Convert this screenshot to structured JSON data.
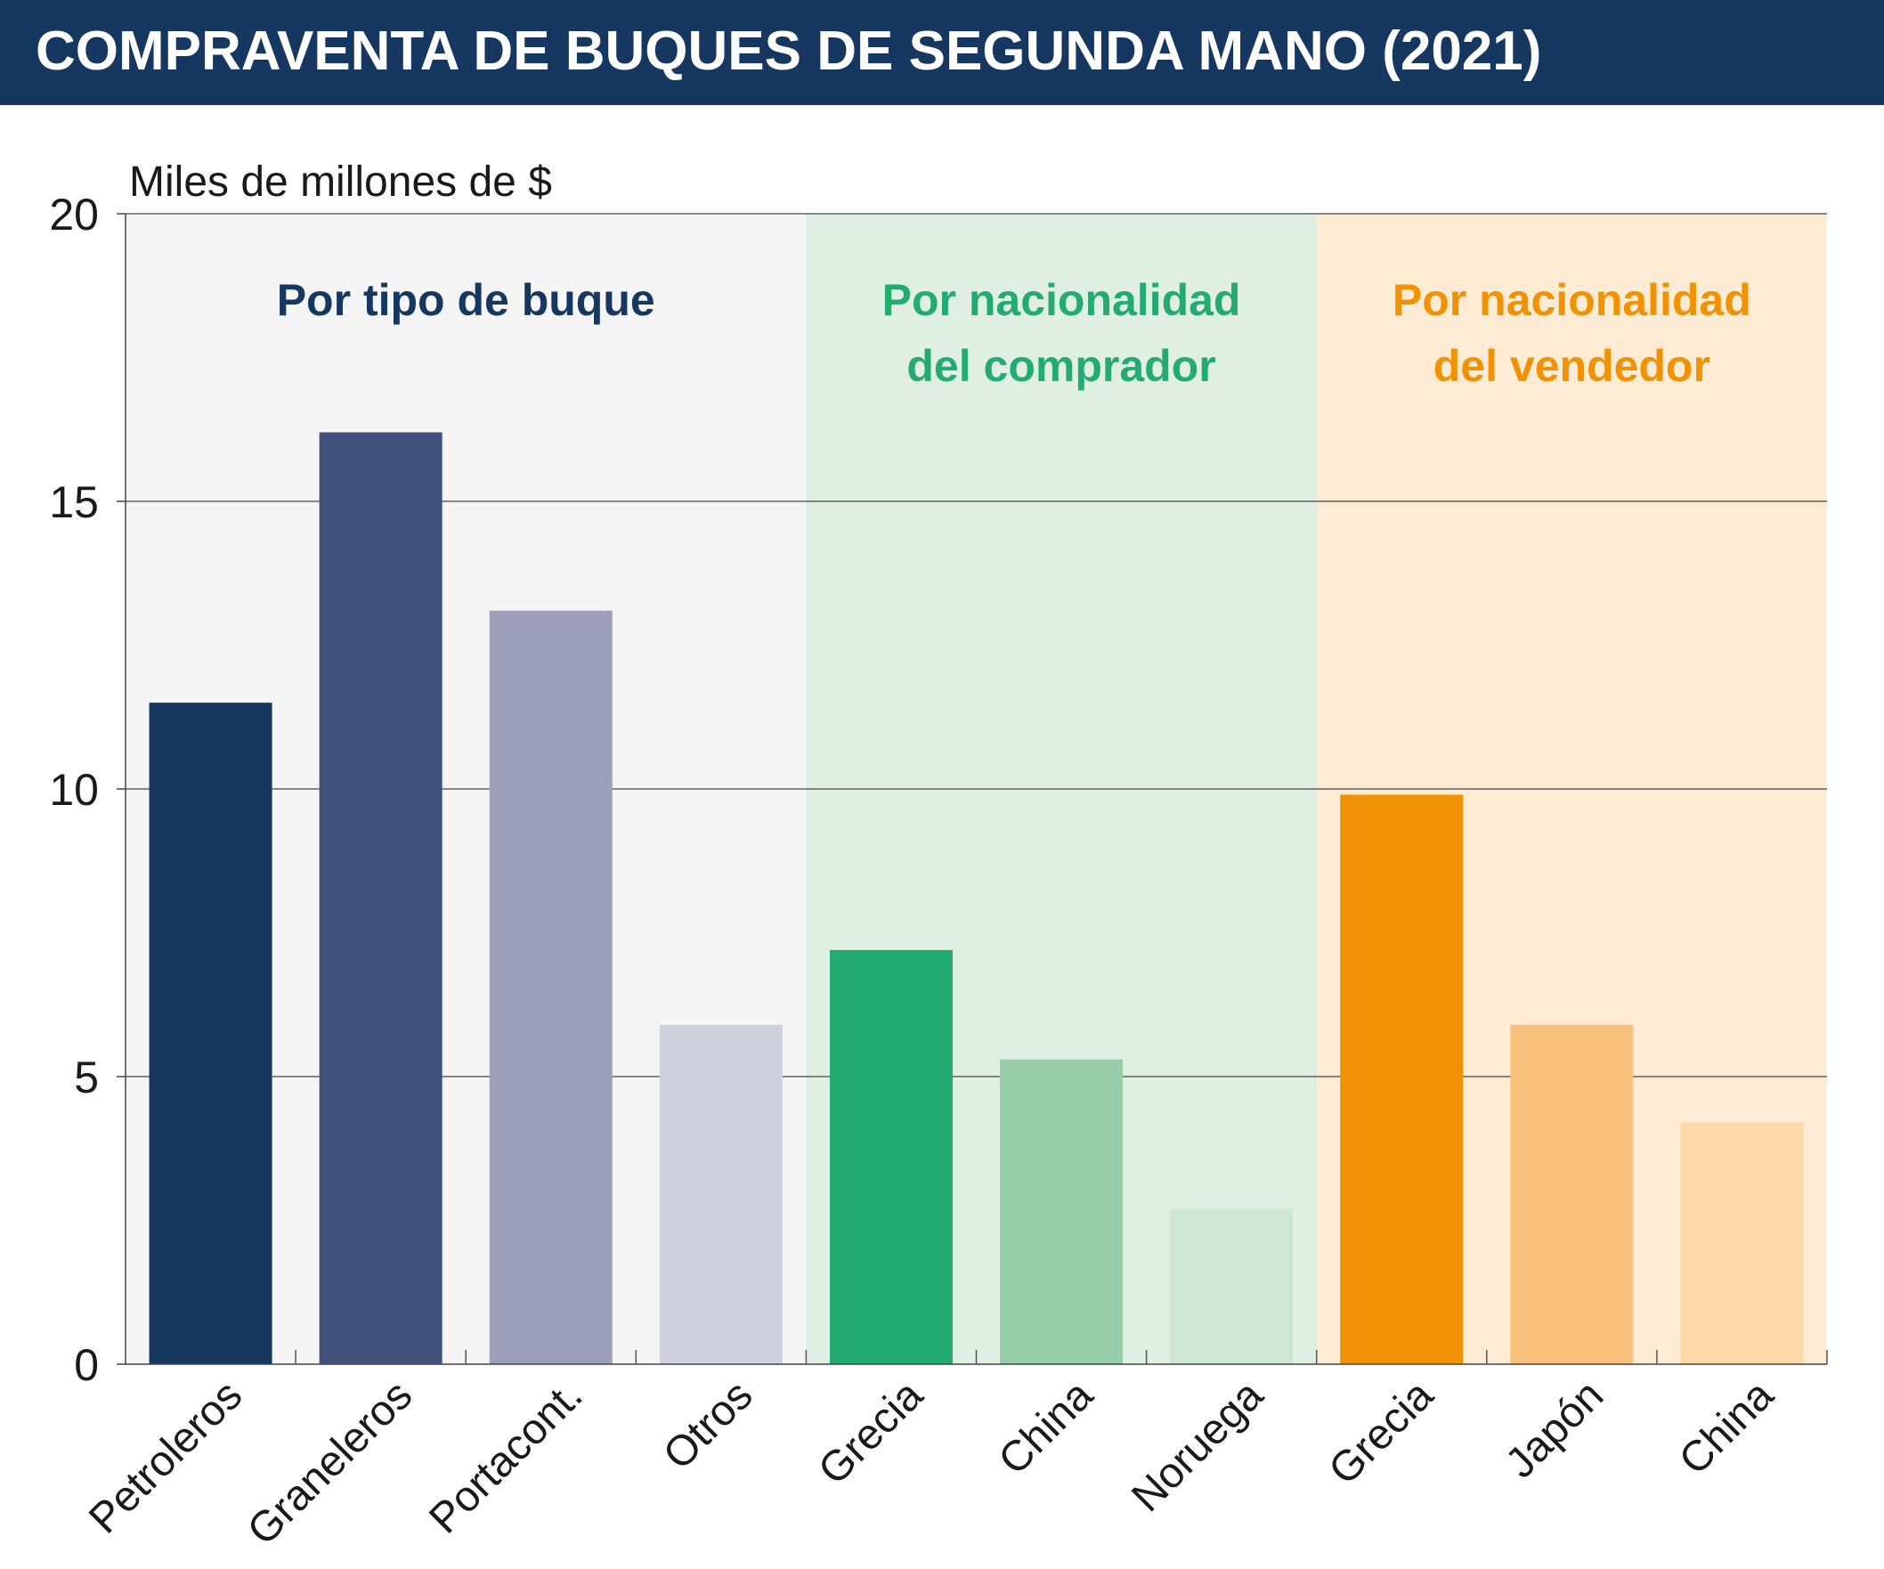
{
  "title": "COMPRAVENTA DE BUQUES DE SEGUNDA MANO (2021)",
  "chart_data": {
    "type": "bar",
    "title": "COMPRAVENTA DE BUQUES DE SEGUNDA MANO (2021)",
    "ylabel": "Miles de millones de $",
    "xlabel": "",
    "ylim": [
      0,
      20
    ],
    "yticks": [
      0,
      5,
      10,
      15,
      20
    ],
    "grid": true,
    "categories": [
      "Petroleros",
      "Graneleros",
      "Portacont.",
      "Otros",
      "Grecia",
      "China",
      "Noruega",
      "Grecia",
      "Japón",
      "China"
    ],
    "values": [
      11.5,
      16.2,
      13.1,
      5.9,
      7.2,
      5.3,
      2.7,
      9.9,
      5.9,
      4.2
    ],
    "bar_colors": [
      "#16375f",
      "#43527a",
      "#9d9fb9",
      "#cfcfdd",
      "#24ab72",
      "#97cea9",
      "#cfe6d3",
      "#f09203",
      "#f9c27c",
      "#fdd8a8"
    ],
    "groups": [
      {
        "label_lines": [
          "Por tipo de buque"
        ],
        "start": 0,
        "end": 3,
        "label_color": "#16375f",
        "bg_color": "#f5f5f5"
      },
      {
        "label_lines": [
          "Por nacionalidad",
          "del comprador"
        ],
        "start": 4,
        "end": 6,
        "label_color": "#24ab72",
        "bg_color": "#e0efe3"
      },
      {
        "label_lines": [
          "Por nacionalidad",
          "del vendedor"
        ],
        "start": 7,
        "end": 9,
        "label_color": "#f09203",
        "bg_color": "#fdebd3"
      }
    ]
  }
}
